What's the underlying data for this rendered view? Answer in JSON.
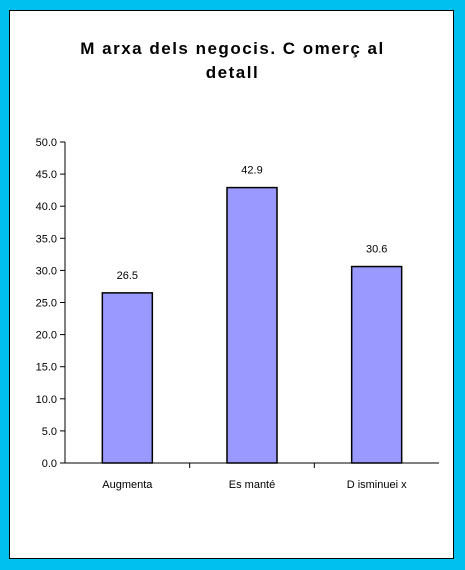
{
  "chart_data": {
    "type": "bar",
    "title_lines": [
      "M arxa dels negocis. C omerç al",
      "detall"
    ],
    "categories": [
      "Augmenta",
      "Es manté",
      "D isminuei x"
    ],
    "values": [
      26.5,
      42.9,
      30.6
    ],
    "value_labels": [
      "26.5",
      "42.9",
      "30.6"
    ],
    "y_ticks": [
      "0.0",
      "5.0",
      "10.0",
      "15.0",
      "20.0",
      "25.0",
      "30.0",
      "35.0",
      "40.0",
      "45.0",
      "50.0"
    ],
    "ylim": [
      0,
      50
    ],
    "y_step": 5,
    "grid": false,
    "legend": "none",
    "colors": {
      "bar_fill": "#9999ff",
      "bar_stroke": "#000000",
      "background": "#00c0f0",
      "plot_area": "#ffffff"
    }
  }
}
